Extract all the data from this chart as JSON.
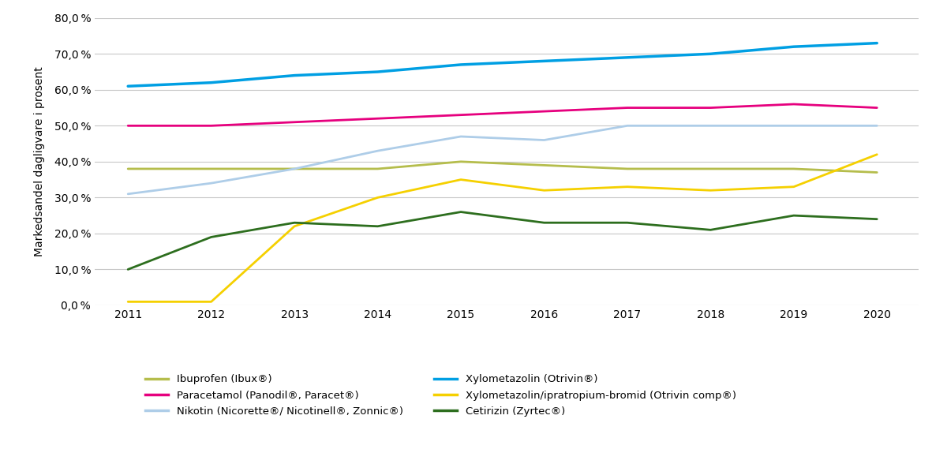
{
  "years": [
    2011,
    2012,
    2013,
    2014,
    2015,
    2016,
    2017,
    2018,
    2019,
    2020
  ],
  "series_order": [
    "Ibuprofen (Ibux®)",
    "Paracetamol (Panodil®, Paracet®)",
    "Nikotin (Nicorette®/ Nicotinell®, Zonnic®)",
    "Xylometazolin (Otrivin®)",
    "Xylometazolin/ipratropium-bromid (Otrivin comp®)",
    "Cetirizin (Zyrtec®)"
  ],
  "series": {
    "Ibuprofen (Ibux®)": {
      "values": [
        38,
        38,
        38,
        38,
        40,
        39,
        38,
        38,
        38,
        37
      ],
      "color": "#b5bd4c",
      "linewidth": 2.0
    },
    "Paracetamol (Panodil®, Paracet®)": {
      "values": [
        50,
        50,
        51,
        52,
        53,
        54,
        55,
        55,
        56,
        55
      ],
      "color": "#e6007e",
      "linewidth": 2.0
    },
    "Nikotin (Nicorette®/ Nicotinell®, Zonnic®)": {
      "values": [
        31,
        34,
        38,
        43,
        47,
        46,
        50,
        50,
        50,
        50
      ],
      "color": "#aecde8",
      "linewidth": 2.0
    },
    "Xylometazolin (Otrivin®)": {
      "values": [
        61,
        62,
        64,
        65,
        67,
        68,
        69,
        70,
        72,
        73
      ],
      "color": "#009fe3",
      "linewidth": 2.5
    },
    "Xylometazolin/ipratropium-bromid (Otrivin comp®)": {
      "values": [
        1,
        1,
        22,
        30,
        35,
        32,
        33,
        32,
        33,
        42
      ],
      "color": "#f5d000",
      "linewidth": 2.0
    },
    "Cetirizin (Zyrtec®)": {
      "values": [
        10,
        19,
        23,
        22,
        26,
        23,
        23,
        21,
        25,
        24
      ],
      "color": "#2d6e1e",
      "linewidth": 2.0
    }
  },
  "ylabel": "Markedsandel dagligvare i prosent",
  "ylim": [
    0,
    80
  ],
  "ytick_values": [
    0,
    10,
    20,
    30,
    40,
    50,
    60,
    70,
    80
  ],
  "background_color": "#ffffff",
  "grid_color": "#c8c8c8",
  "legend_col1": [
    "Ibuprofen (Ibux®)",
    "Nikotin (Nicorette®/ Nicotinell®, Zonnic®)",
    "Xylometazolin/ipratropium-bromid (Otrivin comp®)"
  ],
  "legend_col2": [
    "Paracetamol (Panodil®, Paracet®)",
    "Xylometazolin (Otrivin®)",
    "Cetirizin (Zyrtec®)"
  ]
}
